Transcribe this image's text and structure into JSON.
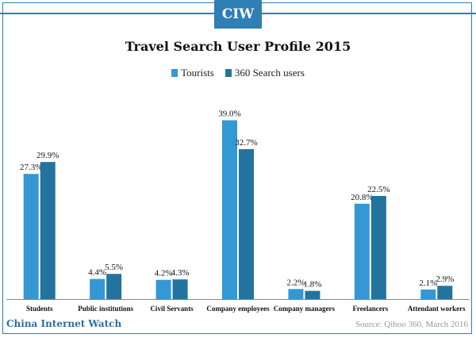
{
  "logo": "CIW",
  "footer": {
    "brand": "China Internet Watch",
    "source": "Source: Qihoo 360, March 2016"
  },
  "colors": {
    "tourists": "#3398d4",
    "search_users": "#23739f",
    "accent": "#2e7fb3"
  },
  "chart_data": {
    "type": "bar",
    "title": "Travel Search User Profile 2015",
    "categories": [
      "Students",
      "Public institutions",
      "Civil Servants",
      "Company employees",
      "Company managers",
      "Freelancers",
      "Attendant workers"
    ],
    "series": [
      {
        "name": "Tourists",
        "values": [
          27.3,
          4.4,
          4.2,
          39.0,
          2.2,
          20.8,
          2.1
        ],
        "labels": [
          "27.3%",
          "4.4%",
          "4.2%",
          "39.0%",
          "2.2%",
          "20.8%",
          "2.1%"
        ]
      },
      {
        "name": "360 Search users",
        "values": [
          29.9,
          5.5,
          4.3,
          32.7,
          1.8,
          22.5,
          2.9
        ],
        "labels": [
          "29.9%",
          "5.5%",
          "4.3%",
          "32.7%",
          "1.8%",
          "22.5%",
          "2.9%"
        ]
      }
    ],
    "ylim": [
      0,
      41
    ],
    "grid": false,
    "legend_position": "top-center"
  }
}
